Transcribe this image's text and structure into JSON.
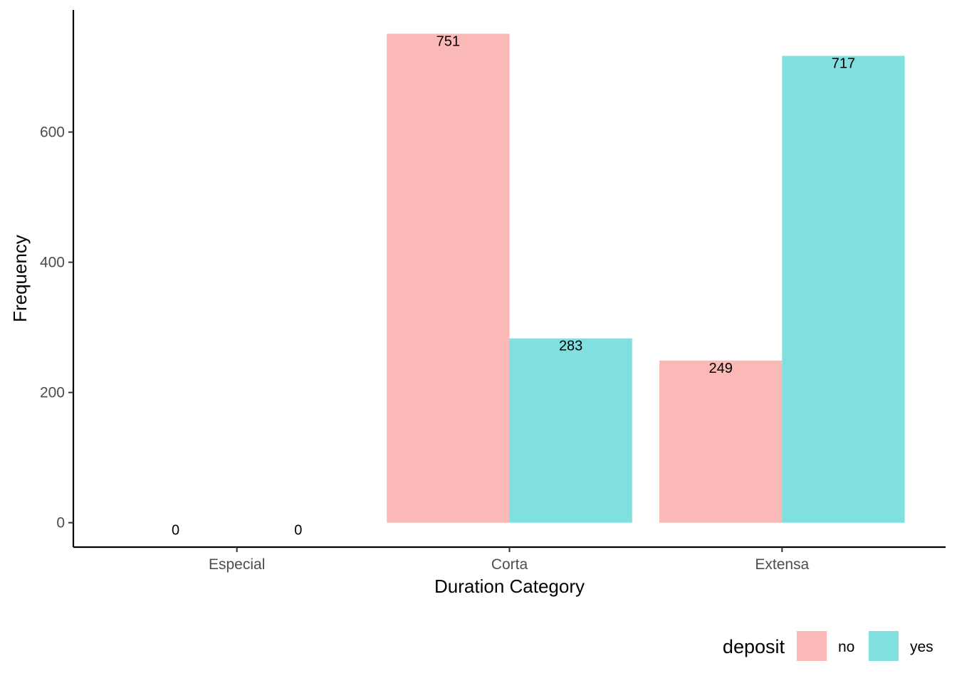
{
  "chart_data": {
    "type": "bar",
    "categories": [
      "Especial",
      "Corta",
      "Extensa"
    ],
    "series": [
      {
        "name": "no",
        "values": [
          0,
          751,
          249
        ],
        "color": "#FAB9B6"
      },
      {
        "name": "yes",
        "values": [
          0,
          283,
          717
        ],
        "color": "#80DFDF"
      }
    ],
    "xlabel": "Duration Category",
    "ylabel": "Frequency",
    "ylim": [
      -37.5,
      787.5
    ],
    "yticks": [
      0,
      200,
      400,
      600
    ],
    "legend": {
      "title": "deposit",
      "position": "bottom-right"
    },
    "grid": false
  }
}
